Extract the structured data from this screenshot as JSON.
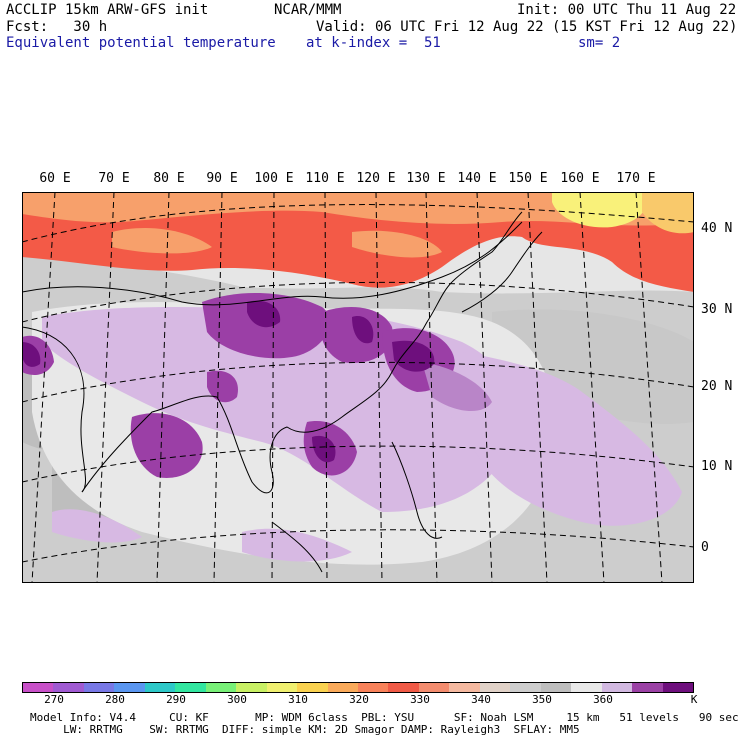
{
  "header": {
    "model": "ACCLIP 15km ARW-GFS init",
    "center": "NCAR/MMM",
    "init": "Init: 00 UTC Thu 11 Aug 22",
    "fcst_label": "Fcst:   30 h",
    "valid": "Valid: 06 UTC Fri 12 Aug 22 (15 KST Fri 12 Aug 22)",
    "field": "Equivalent potential temperature",
    "level": "at k-index =  51",
    "smooth": "sm= 2"
  },
  "map": {
    "lon_labels": [
      "60 E",
      "70 E",
      "80 E",
      "90 E",
      "100 E",
      "110 E",
      "120 E",
      "130 E",
      "140 E",
      "150 E",
      "160 E",
      "170 E"
    ],
    "lat_labels": [
      "40 N",
      "30 N",
      "20 N",
      "10 N",
      "0"
    ],
    "colors": {
      "background": "#e6e6e6",
      "land_gray": "#c8c8c8",
      "light_purple": "#d7b9e3",
      "mid_purple": "#9b3fa6",
      "dark_purple": "#6e0f7d",
      "red": "#f35a47",
      "orange": "#f7a06b",
      "yellow": "#f9f17a"
    }
  },
  "colorbar": {
    "unit": "K",
    "tick_labels": [
      "270",
      "280",
      "290",
      "300",
      "310",
      "320",
      "330",
      "340",
      "350",
      "360"
    ],
    "colors": [
      "#c850c8",
      "#a05ad2",
      "#7878e6",
      "#5a96f0",
      "#2dc8c8",
      "#32e6a0",
      "#78f078",
      "#c8f064",
      "#f0f070",
      "#fad250",
      "#faaa5a",
      "#f8825a",
      "#f05a46",
      "#f38c6e",
      "#f5b9a0",
      "#e1d2c8",
      "#cdcdcd",
      "#bebebe",
      "#e8e8e8",
      "#d2b9e1",
      "#9b41a5",
      "#6e0f7d"
    ]
  },
  "footer": {
    "line1": "Model Info: V4.4     CU: KF       MP: WDM 6class  PBL: YSU      SF: Noah LSM     15 km   51 levels   90 sec",
    "line2": "     LW: RRTMG    SW: RRTMG  DIFF: simple KM: 2D Smagor DAMP: Rayleigh3  SFLAY: MM5"
  }
}
